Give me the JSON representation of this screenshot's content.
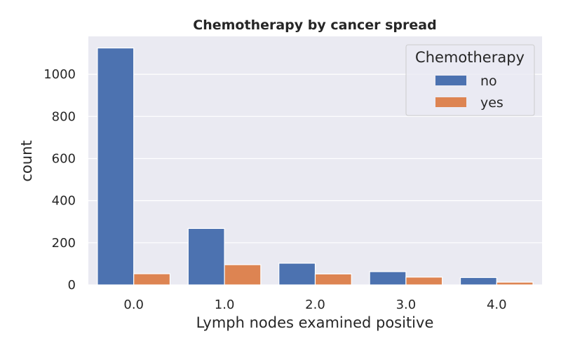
{
  "chart_data": {
    "type": "bar",
    "title": "Chemotherapy by cancer spread",
    "xlabel": "Lymph nodes examined positive",
    "ylabel": "count",
    "categories": [
      "0.0",
      "1.0",
      "2.0",
      "3.0",
      "4.0"
    ],
    "series": [
      {
        "name": "no",
        "values": [
          1125,
          268,
          103,
          63,
          35
        ]
      },
      {
        "name": "yes",
        "values": [
          53,
          96,
          52,
          37,
          13
        ]
      }
    ],
    "ylim": [
      0,
      1180
    ],
    "yticks": [
      0,
      200,
      400,
      600,
      800,
      1000
    ],
    "grid": true,
    "legend": {
      "title": "Chemotherapy",
      "position": "top-right"
    },
    "colors": {
      "background": "#EAEAF2",
      "grid": "#FFFFFF",
      "no": "#4C72B0",
      "yes": "#DD8452"
    }
  }
}
